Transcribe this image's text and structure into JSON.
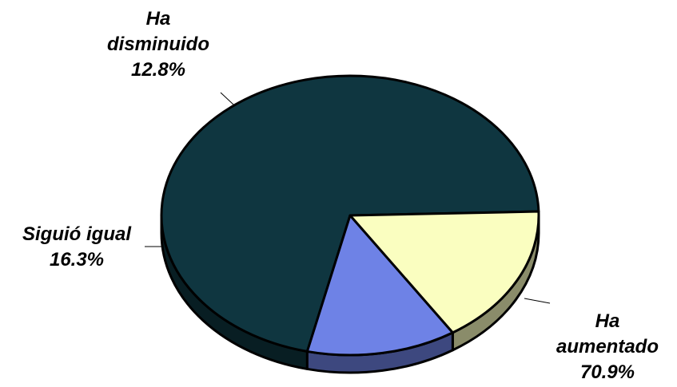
{
  "chart_data": {
    "type": "pie",
    "style": "3d",
    "title": "",
    "slices": [
      {
        "name": "Ha aumentado",
        "label_lines": [
          "Ha",
          "aumentado"
        ],
        "value": 70.9,
        "value_label": "70.9%",
        "color": "#0f3640"
      },
      {
        "name": "Siguió igual",
        "label_lines": [
          "Siguió igual"
        ],
        "value": 16.3,
        "value_label": "16.3%",
        "color": "#fafec0"
      },
      {
        "name": "Ha disminuido",
        "label_lines": [
          "Ha",
          "disminuido"
        ],
        "value": 12.8,
        "value_label": "12.8%",
        "color": "#6e82e6"
      }
    ]
  }
}
